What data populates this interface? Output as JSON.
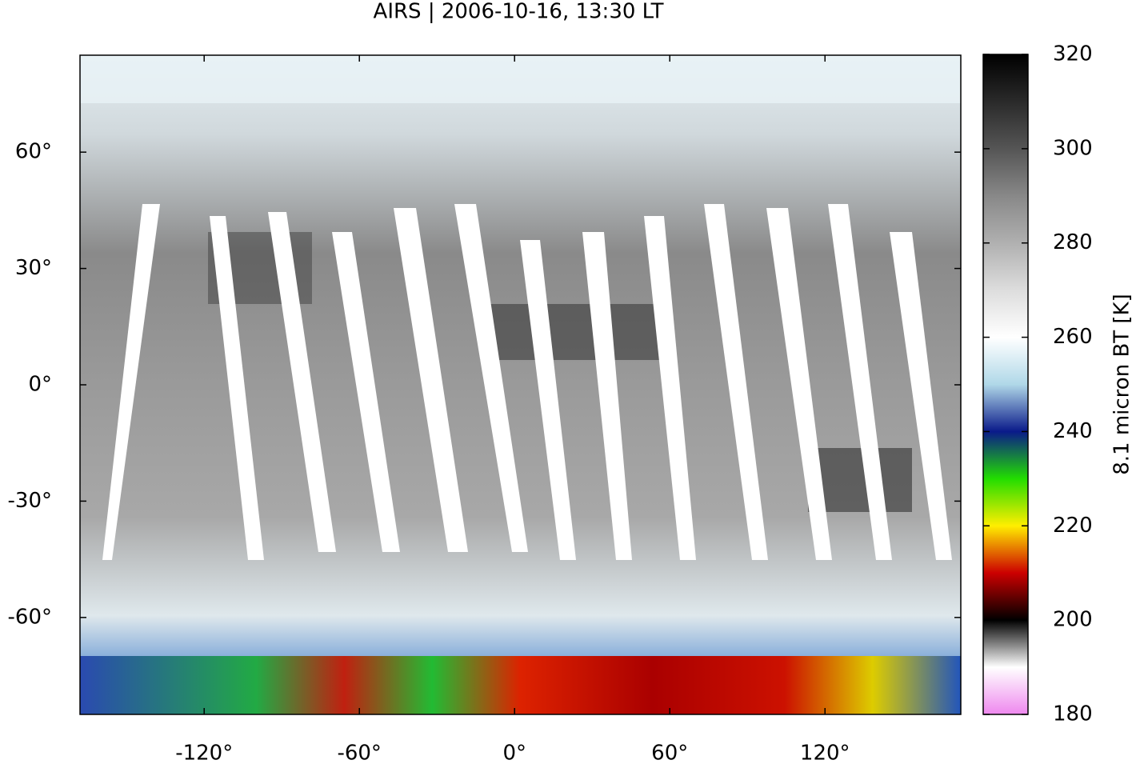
{
  "chart_data": {
    "type": "map",
    "title": "AIRS | 2006-10-16, 13:30 LT",
    "xlim": [
      -168,
      172.5
    ],
    "ylim": [
      -85,
      85
    ],
    "xticks": [
      {
        "value": -120,
        "label": "-120°"
      },
      {
        "value": -60,
        "label": "-60°"
      },
      {
        "value": 0,
        "label": "0°"
      },
      {
        "value": 60,
        "label": "60°"
      },
      {
        "value": 120,
        "label": "120°"
      }
    ],
    "yticks": [
      {
        "value": -60,
        "label": "-60°"
      },
      {
        "value": -30,
        "label": "-30°"
      },
      {
        "value": 0,
        "label": "0°"
      },
      {
        "value": 30,
        "label": "30°"
      },
      {
        "value": 60,
        "label": "60°"
      }
    ],
    "colorbar": {
      "label": "8.1 micron BT [K]",
      "lim": [
        180,
        320
      ],
      "ticks": [
        180,
        200,
        220,
        240,
        260,
        280,
        300,
        320
      ],
      "colors": [
        "#ee88ee",
        "#ffffff",
        "#000000",
        "#cc0000",
        "#ffee00",
        "#22dd00",
        "#0a1a8a",
        "#b0d8e8",
        "#ffffff",
        "#dddddd",
        "#b0b0b0",
        "#888888",
        "#555555",
        "#2a2a2a",
        "#000000"
      ]
    }
  }
}
